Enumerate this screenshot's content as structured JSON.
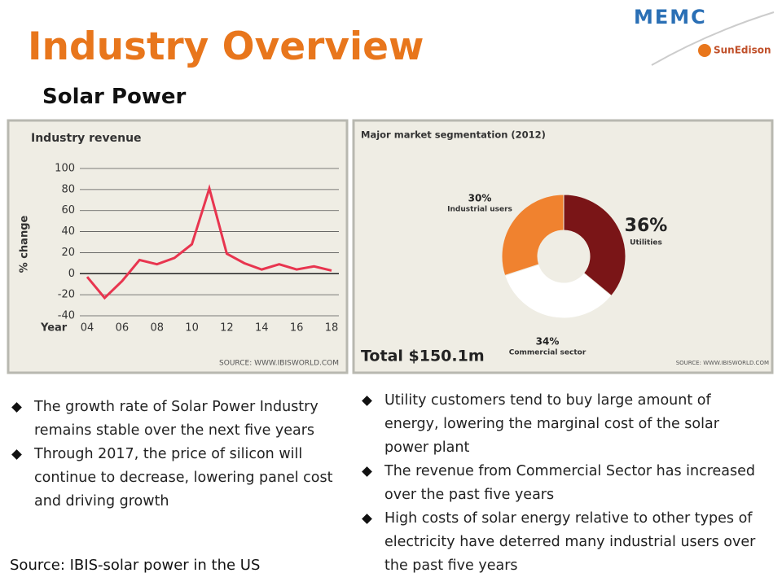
{
  "header": {
    "title": "Industry Overview",
    "subtitle": "Solar Power",
    "logo_top": "MEMC",
    "logo_bottom": "SunEdison"
  },
  "chart_data": [
    {
      "type": "line",
      "title": "Industry revenue",
      "y_label": "% change",
      "x_label": "Year",
      "source": "SOURCE: WWW.IBISWORLD.COM",
      "x": [
        4,
        5,
        6,
        7,
        8,
        9,
        10,
        11,
        12,
        13,
        14,
        15,
        16,
        17,
        18
      ],
      "series": [
        {
          "name": "Industry revenue",
          "color": "#e8354f",
          "values": [
            -3,
            -23,
            -7,
            13,
            9,
            15,
            28,
            81,
            19,
            10,
            4,
            9,
            4,
            7,
            3
          ]
        }
      ],
      "xlim": [
        4,
        18
      ],
      "xticks": [
        {
          "value": 4,
          "label": "04"
        },
        {
          "value": 6,
          "label": "06"
        },
        {
          "value": 8,
          "label": "08"
        },
        10,
        12,
        14,
        16,
        18
      ],
      "ylim": [
        -40,
        100
      ],
      "yticks": [
        -40,
        -20,
        0,
        20,
        40,
        60,
        80,
        100
      ],
      "grid": true
    },
    {
      "type": "donut",
      "title": "Major market segmentation (2012)",
      "total": "Total $150.1m",
      "source": "SOURCE: WWW.IBISWORLD.COM",
      "categories": [
        "Utilities",
        "Commercial sector",
        "Industrial users"
      ],
      "values": [
        36,
        34,
        30
      ],
      "value_labels": [
        "36%",
        "34%",
        "30%"
      ],
      "colors": [
        "#7a1517",
        "#ffffff",
        "#f0822f"
      ]
    }
  ],
  "bullets_left": [
    "The growth rate of Solar Power Industry remains stable over the next five years",
    "Through 2017, the price of silicon will continue to decrease, lowering panel cost and driving growth"
  ],
  "bullets_right": [
    "Utility customers tend to buy large amount of energy, lowering the marginal cost of the solar power plant",
    "The revenue from Commercial Sector has increased over the past five years",
    "High costs of solar energy relative to other types of electricity have deterred many industrial users over the past five years"
  ],
  "source": "Source: IBIS-solar power in the US"
}
